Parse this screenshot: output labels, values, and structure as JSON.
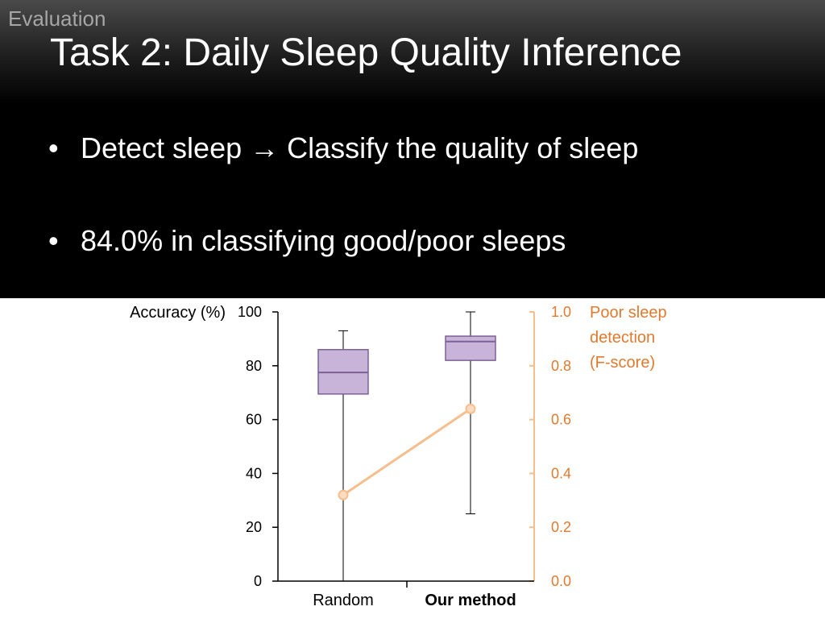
{
  "header": {
    "section": "Evaluation",
    "title": "Task 2: Daily Sleep Quality Inference"
  },
  "bullets": [
    {
      "marker": "•",
      "before": "Detect sleep ",
      "arrow": "→",
      "after": " Classify the quality of sleep"
    },
    {
      "marker": "•",
      "text": "84.0% in classifying good/poor sleeps"
    }
  ],
  "colors": {
    "box_fill": "#c8b4d8",
    "box_stroke": "#7b6195",
    "line": "#f5be8c",
    "right_axis": "#e07a2e",
    "text": "#000000"
  },
  "chart_data": {
    "type": "box",
    "categories": [
      "Random",
      "Our method"
    ],
    "category_bold": [
      false,
      true
    ],
    "left_axis": {
      "label": "Accuracy (%)",
      "ylim": [
        0,
        100
      ],
      "ticks": [
        "0",
        "20",
        "40",
        "60",
        "80",
        "100"
      ]
    },
    "right_axis": {
      "label_lines": [
        "Poor sleep",
        "detection",
        "(F-score)"
      ],
      "ylim": [
        0,
        1
      ],
      "ticks": [
        "0.0",
        "0.2",
        "0.4",
        "0.6",
        "0.8",
        "1.0"
      ]
    },
    "boxes": [
      {
        "category": "Random",
        "min": 0,
        "q1": 69.5,
        "median": 77.5,
        "q3": 86,
        "max": 93
      },
      {
        "category": "Our method",
        "min": 25,
        "q1": 82,
        "median": 89,
        "q3": 91,
        "max": 100
      }
    ],
    "line_series": {
      "axis": "right",
      "values": [
        0.32,
        0.64
      ]
    },
    "grid": false
  }
}
